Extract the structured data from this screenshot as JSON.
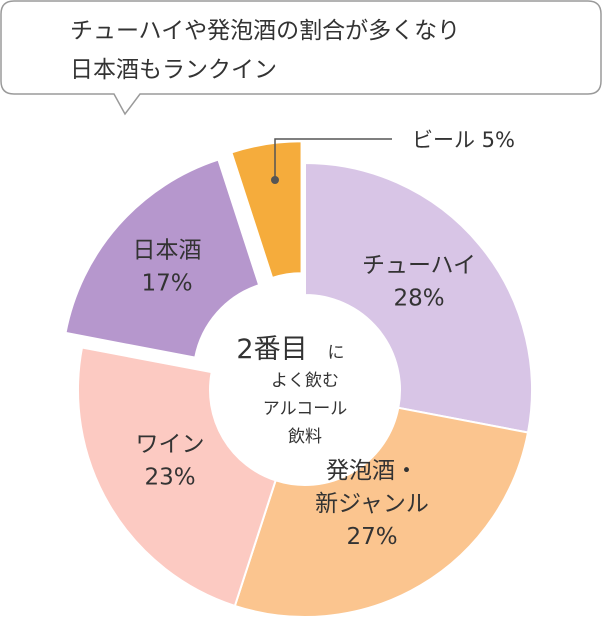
{
  "bubble": {
    "line1": "チューハイや発泡酒の割合が多くなり",
    "line2": "日本酒もランクイン"
  },
  "center": {
    "big": "2番目",
    "big_suffix": "に",
    "line2": "よく飲む",
    "line3": "アルコール",
    "line4": "飲料"
  },
  "chart_data": {
    "type": "pie",
    "title": "",
    "slices": [
      {
        "name": "チューハイ",
        "label_lines": [
          "チューハイ",
          "28%"
        ],
        "value": 28,
        "color": "#d8c5e6",
        "exploded": false
      },
      {
        "name": "発泡酒・新ジャンル",
        "label_lines": [
          "発泡酒・",
          "新ジャンル",
          "27%"
        ],
        "value": 27,
        "color": "#fbc58f",
        "exploded": false
      },
      {
        "name": "ワイン",
        "label_lines": [
          "ワイン",
          "23%"
        ],
        "value": 23,
        "color": "#fccac2",
        "exploded": false
      },
      {
        "name": "日本酒",
        "label_lines": [
          "日本酒",
          "17%"
        ],
        "value": 17,
        "color": "#b697cd",
        "exploded": true
      },
      {
        "name": "ビール",
        "label_lines": [],
        "value": 5,
        "color": "#f5ac3c",
        "exploded": true
      }
    ],
    "callout": {
      "label": "ビール 5%",
      "slice": "ビール"
    },
    "donut": true
  },
  "colors": {
    "bubble_border": "#9a9a9a",
    "slice_stroke": "#ffffff",
    "callout_line": "#555555"
  }
}
